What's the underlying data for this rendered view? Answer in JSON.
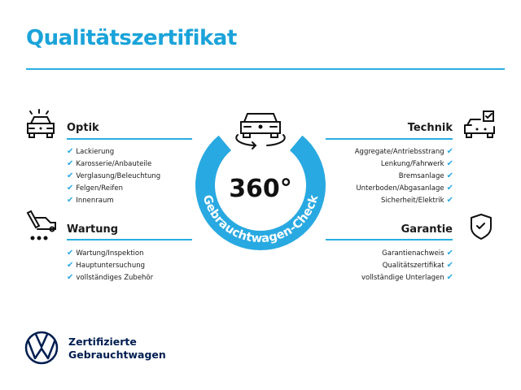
{
  "title": "Qualitätszertifikat",
  "colors": {
    "accent": "#29a9e1",
    "title": "#1aa3d9",
    "brand": "#001e50"
  },
  "badge": {
    "value": "360°",
    "arc_text": "Gebrauchtwagen-Check",
    "icon": "car-rotate-icon"
  },
  "sections": {
    "optik": {
      "title": "Optik",
      "icon": "car-lights-icon",
      "items": [
        "Lackierung",
        "Karosserie/Anbauteile",
        "Verglasung/Beleuchtung",
        "Felgen/Reifen",
        "Innenraum"
      ]
    },
    "wartung": {
      "title": "Wartung",
      "icon": "service-truck-icon",
      "items": [
        "Wartung/Inspektion",
        "Hauptuntersuchung",
        "vollständiges Zubehör"
      ]
    },
    "technik": {
      "title": "Technik",
      "icon": "car-checkbox-icon",
      "items": [
        "Aggregate/Antriebsstrang",
        "Lenkung/Fahrwerk",
        "Bremsanlage",
        "Unterboden/Abgasanlage",
        "Sicherheit/Elektrik"
      ]
    },
    "garantie": {
      "title": "Garantie",
      "icon": "shield-check-icon",
      "items": [
        "Garantienachweis",
        "Qualitätszertifikat",
        "vollständige Unterlagen"
      ]
    }
  },
  "check_glyph": "✔",
  "brand": {
    "line1": "Zertifizierte",
    "line2": "Gebrauchtwagen",
    "logo": "vw-logo"
  }
}
